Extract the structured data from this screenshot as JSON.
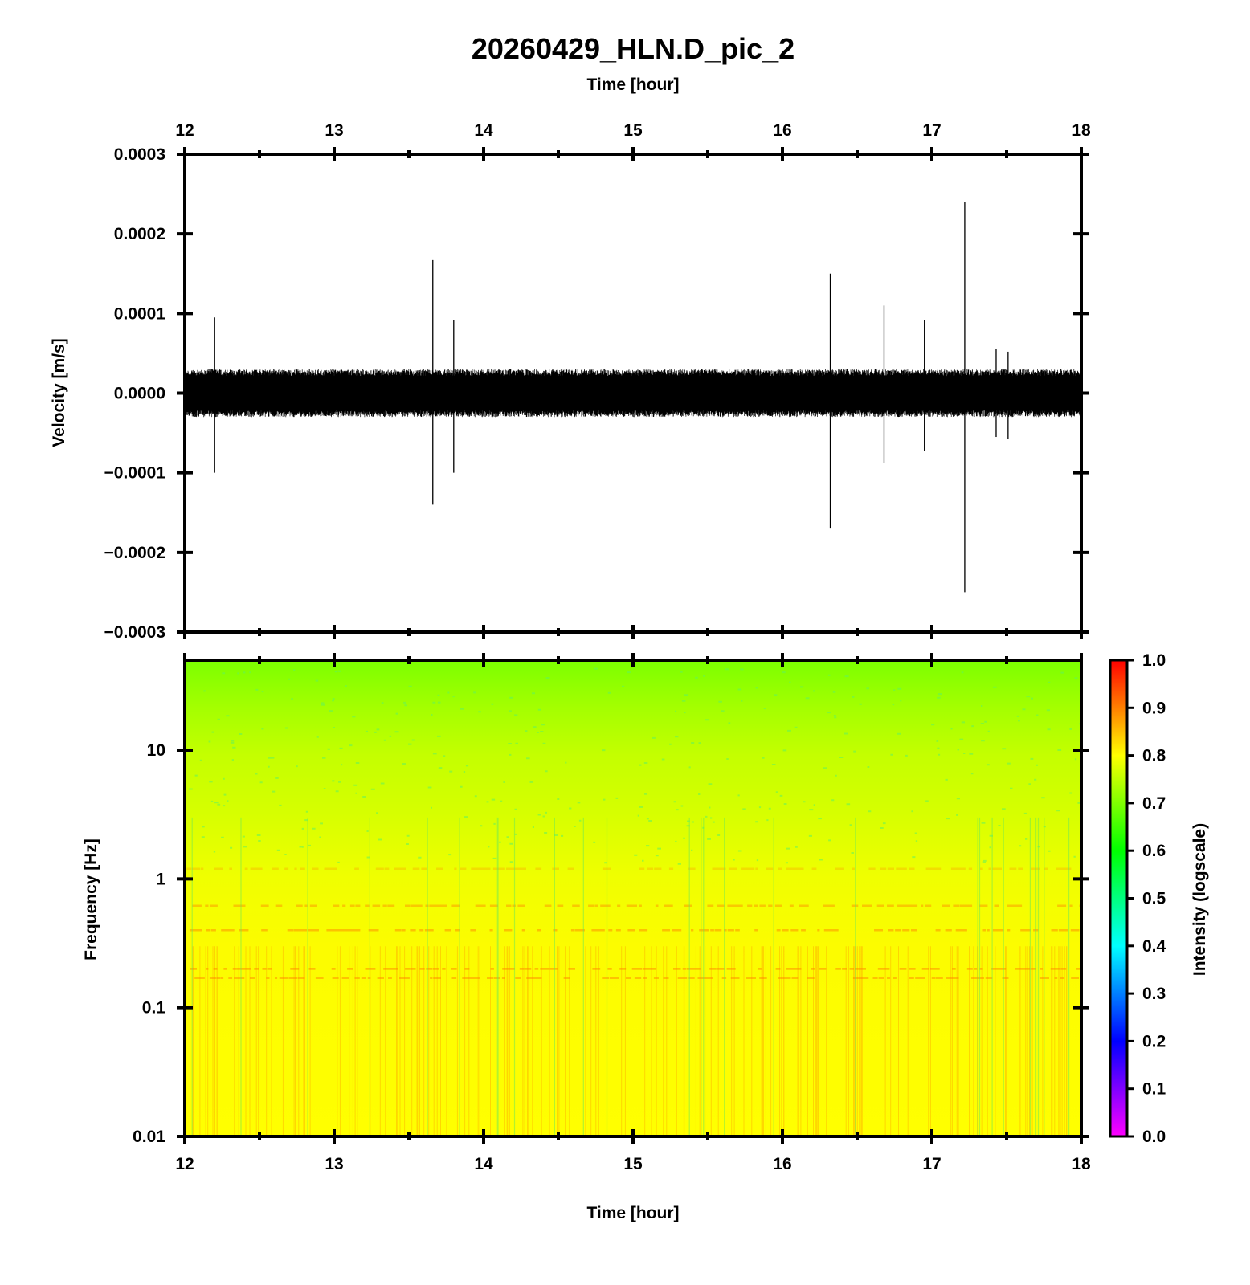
{
  "title": "20260429_HLN.D_pic_2",
  "chart_data": [
    {
      "type": "line",
      "panel": "waveform",
      "xlabel_top": "Time [hour]",
      "ylabel": "Velocity [m/s]",
      "xlim": [
        12,
        18
      ],
      "ylim": [
        -0.0003,
        0.0003
      ],
      "x_ticks": [
        "12",
        "13",
        "14",
        "15",
        "16",
        "17",
        "18"
      ],
      "y_ticks": [
        "0.0003",
        "0.0002",
        "0.0001",
        "0.0000",
        "−0.0001",
        "−0.0002",
        "−0.0003"
      ],
      "noise_amplitude": 3e-05,
      "spikes": [
        {
          "x": 12.2,
          "y_max": 9.5e-05,
          "y_min": -0.0001
        },
        {
          "x": 13.66,
          "y_max": 0.000167,
          "y_min": -0.00014
        },
        {
          "x": 13.8,
          "y_max": 9.2e-05,
          "y_min": -0.0001
        },
        {
          "x": 16.32,
          "y_max": 0.00015,
          "y_min": -0.00017
        },
        {
          "x": 16.68,
          "y_max": 0.00011,
          "y_min": -8.8e-05
        },
        {
          "x": 16.95,
          "y_max": 9.2e-05,
          "y_min": -7.3e-05
        },
        {
          "x": 17.22,
          "y_max": 0.00024,
          "y_min": -0.00025
        },
        {
          "x": 17.43,
          "y_max": 5.5e-05,
          "y_min": -5.5e-05
        },
        {
          "x": 17.51,
          "y_max": 5.2e-05,
          "y_min": -5.8e-05
        }
      ]
    },
    {
      "type": "heatmap",
      "panel": "spectrogram",
      "xlabel": "Time [hour]",
      "ylabel": "Frequency [Hz]",
      "xlim": [
        12,
        18
      ],
      "ylim": [
        0.01,
        50
      ],
      "y_scale": "log",
      "x_ticks": [
        "12",
        "13",
        "14",
        "15",
        "16",
        "17",
        "18"
      ],
      "y_ticks": [
        "10",
        "1",
        "0.1",
        "0.01"
      ],
      "colorbar": {
        "label": "Intensity (logscale)",
        "range": [
          0,
          1
        ],
        "ticks": [
          "1.0",
          "0.9",
          "0.8",
          "0.7",
          "0.6",
          "0.5",
          "0.4",
          "0.3",
          "0.2",
          "0.1",
          "0.0"
        ]
      },
      "intensity_profile": [
        {
          "freq": 50,
          "intensity": 0.6
        },
        {
          "freq": 10,
          "intensity": 0.72
        },
        {
          "freq": 2,
          "intensity": 0.76
        },
        {
          "freq": 1,
          "intensity": 0.8
        },
        {
          "freq": 0.2,
          "intensity": 0.82
        },
        {
          "freq": 0.01,
          "intensity": 0.8
        }
      ]
    }
  ]
}
